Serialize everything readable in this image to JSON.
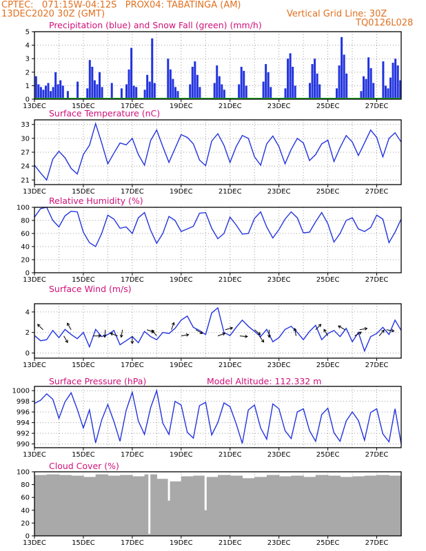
{
  "header": {
    "line1_left": "CPTEC:   071:15W-04:12S   PROX04: TABATINGA (AM)",
    "line2_left": "13DEC2020 30Z (GMT)",
    "line2_right": "Vertical Grid Line: 30Z",
    "model_code": "TQ0126L028"
  },
  "colors": {
    "series": "#2233dd",
    "snow": "#22aa22",
    "cloud": "#a9a9a9",
    "title": "#d0107a",
    "header": "#e07020"
  },
  "chart_data": [
    {
      "type": "bar",
      "title": "Precipitation (blue) and Snow Fall (green) (mm/h)",
      "ylim": [
        0,
        5
      ],
      "yticks": [
        0,
        1,
        2,
        3,
        4,
        5
      ],
      "xticks": [
        "13DEC",
        "15DEC",
        "17DEC",
        "19DEC",
        "21DEC",
        "23DEC",
        "25DEC",
        "27DEC"
      ],
      "x_day_range": [
        0,
        15
      ],
      "series": [
        {
          "name": "Precipitation",
          "color": "blue",
          "x": [
            0.05,
            0.15,
            0.25,
            0.35,
            0.45,
            0.55,
            0.65,
            0.75,
            0.85,
            0.95,
            1.05,
            1.15,
            1.35,
            1.75,
            2.15,
            2.25,
            2.35,
            2.45,
            2.55,
            2.65,
            2.75,
            3.15,
            3.55,
            3.75,
            3.85,
            3.95,
            4.05,
            4.15,
            4.5,
            4.6,
            4.7,
            4.8,
            4.9,
            5.45,
            5.55,
            5.65,
            5.75,
            5.85,
            6.35,
            6.45,
            6.55,
            6.65,
            6.75,
            7.35,
            7.45,
            7.55,
            7.65,
            7.75,
            8.35,
            8.45,
            8.55,
            8.65,
            9.35,
            9.45,
            9.55,
            9.65,
            10.25,
            10.35,
            10.45,
            10.55,
            10.65,
            11.25,
            11.35,
            11.45,
            11.55,
            11.65,
            12.35,
            12.45,
            12.55,
            12.65,
            12.75,
            13.35,
            13.45,
            13.55,
            13.65,
            13.75,
            13.85,
            14.25,
            14.35,
            14.45,
            14.55,
            14.65,
            14.75,
            14.85,
            14.95
          ],
          "values": [
            1.7,
            1.1,
            0.9,
            0.7,
            1.0,
            1.2,
            0.6,
            0.9,
            2.0,
            1.1,
            1.4,
            1.0,
            0.6,
            1.3,
            0.8,
            2.9,
            2.4,
            1.4,
            1.1,
            2.0,
            0.9,
            1.2,
            0.8,
            1.1,
            2.2,
            3.8,
            1.0,
            0.9,
            0.7,
            1.8,
            1.3,
            4.5,
            1.2,
            3.0,
            2.2,
            1.5,
            0.9,
            0.6,
            1.1,
            2.4,
            2.8,
            1.8,
            0.9,
            1.2,
            2.5,
            1.7,
            1.1,
            0.7,
            1.1,
            2.4,
            2.1,
            1.0,
            1.3,
            2.6,
            2.0,
            0.9,
            0.8,
            3.0,
            3.4,
            2.4,
            1.0,
            1.2,
            2.6,
            3.0,
            1.9,
            1.1,
            0.8,
            2.5,
            4.6,
            3.3,
            1.9,
            0.6,
            1.7,
            1.5,
            3.1,
            2.3,
            1.2,
            2.8,
            1.0,
            0.8,
            1.6,
            2.7,
            3.0,
            2.5,
            1.4
          ]
        },
        {
          "name": "Snow Fall",
          "color": "green",
          "values": [
            0
          ]
        }
      ]
    },
    {
      "type": "line",
      "title": "Surface Temperature (nC)",
      "ylim": [
        20,
        34
      ],
      "yticks": [
        21,
        24,
        27,
        30,
        33
      ],
      "xticks": [
        "13DEC",
        "15DEC",
        "17DEC",
        "19DEC",
        "21DEC",
        "23DEC",
        "25DEC",
        "27DEC"
      ],
      "x_day_range": [
        0,
        15
      ],
      "x": [
        0,
        0.25,
        0.5,
        0.75,
        1.0,
        1.25,
        1.5,
        1.75,
        2.0,
        2.25,
        2.5,
        2.75,
        3.0,
        3.25,
        3.5,
        3.75,
        4.0,
        4.25,
        4.5,
        4.75,
        5.0,
        5.25,
        5.5,
        5.75,
        6.0,
        6.25,
        6.5,
        6.75,
        7.0,
        7.25,
        7.5,
        7.75,
        8.0,
        8.25,
        8.5,
        8.75,
        9.0,
        9.25,
        9.5,
        9.75,
        10.0,
        10.25,
        10.5,
        10.75,
        11.0,
        11.25,
        11.5,
        11.75,
        12.0,
        12.25,
        12.5,
        12.75,
        13.0,
        13.25,
        13.5,
        13.75,
        14.0,
        14.25,
        14.5,
        14.75,
        15.0
      ],
      "values": [
        24.2,
        22.5,
        21.0,
        25.5,
        27.2,
        25.8,
        23.5,
        22.3,
        26.5,
        28.5,
        33.2,
        29.0,
        24.5,
        26.8,
        29.0,
        28.6,
        30.0,
        26.5,
        24.2,
        29.5,
        31.8,
        28.2,
        24.8,
        27.8,
        30.8,
        30.2,
        28.8,
        25.3,
        24.1,
        29.4,
        31.0,
        28.5,
        24.8,
        28.2,
        30.6,
        30.0,
        26.0,
        24.2,
        28.8,
        30.5,
        28.2,
        24.5,
        27.6,
        30.0,
        29.0,
        25.2,
        26.5,
        28.8,
        29.6,
        25.0,
        28.0,
        30.6,
        29.2,
        26.3,
        29.0,
        31.8,
        30.2,
        26.0,
        30.0,
        31.2,
        29.2
      ]
    },
    {
      "type": "line",
      "title": "Relative Humidity (%)",
      "ylim": [
        0,
        100
      ],
      "yticks": [
        0,
        20,
        40,
        60,
        80,
        100
      ],
      "xticks": [
        "13DEC",
        "15DEC",
        "17DEC",
        "19DEC",
        "21DEC",
        "23DEC",
        "25DEC",
        "27DEC"
      ],
      "x_day_range": [
        0,
        15
      ],
      "x": [
        0,
        0.25,
        0.5,
        0.75,
        1.0,
        1.25,
        1.5,
        1.75,
        2.0,
        2.25,
        2.5,
        2.75,
        3.0,
        3.25,
        3.5,
        3.75,
        4.0,
        4.25,
        4.5,
        4.75,
        5.0,
        5.25,
        5.5,
        5.75,
        6.0,
        6.25,
        6.5,
        6.75,
        7.0,
        7.25,
        7.5,
        7.75,
        8.0,
        8.25,
        8.5,
        8.75,
        9.0,
        9.25,
        9.5,
        9.75,
        10.0,
        10.25,
        10.5,
        10.75,
        11.0,
        11.25,
        11.5,
        11.75,
        12.0,
        12.25,
        12.5,
        12.75,
        13.0,
        13.25,
        13.5,
        13.75,
        14.0,
        14.25,
        14.5,
        14.75,
        15.0
      ],
      "values": [
        85,
        98,
        100,
        80,
        70,
        87,
        94,
        93,
        62,
        46,
        40,
        60,
        88,
        82,
        68,
        70,
        60,
        84,
        92,
        65,
        45,
        60,
        86,
        80,
        63,
        67,
        71,
        91,
        92,
        68,
        52,
        60,
        85,
        73,
        59,
        60,
        83,
        93,
        70,
        53,
        66,
        82,
        93,
        84,
        61,
        62,
        78,
        92,
        75,
        47,
        60,
        80,
        84,
        67,
        63,
        69,
        88,
        82,
        46,
        62,
        82
      ]
    },
    {
      "type": "line",
      "title": "Surface Wind (m/s)",
      "ylim": [
        -0.5,
        4.8
      ],
      "yticks": [
        0,
        2,
        4
      ],
      "xticks": [
        "13DEC",
        "15DEC",
        "17DEC",
        "19DEC",
        "21DEC",
        "23DEC",
        "25DEC",
        "27DEC"
      ],
      "x_day_range": [
        0,
        15
      ],
      "x": [
        0,
        0.25,
        0.5,
        0.75,
        1.0,
        1.25,
        1.5,
        1.75,
        2.0,
        2.25,
        2.5,
        2.75,
        3.0,
        3.25,
        3.5,
        3.75,
        4.0,
        4.25,
        4.5,
        4.75,
        5.0,
        5.25,
        5.5,
        5.75,
        6.0,
        6.25,
        6.5,
        6.75,
        7.0,
        7.25,
        7.5,
        7.75,
        8.0,
        8.25,
        8.5,
        8.75,
        9.0,
        9.25,
        9.5,
        9.75,
        10.0,
        10.25,
        10.5,
        10.75,
        11.0,
        11.25,
        11.5,
        11.75,
        12.0,
        12.25,
        12.5,
        12.75,
        13.0,
        13.25,
        13.5,
        13.75,
        14.0,
        14.25,
        14.5,
        14.75,
        15.0
      ],
      "values": [
        1.7,
        1.2,
        1.3,
        2.2,
        1.5,
        2.3,
        1.8,
        1.4,
        2.0,
        0.6,
        2.3,
        1.6,
        1.8,
        2.2,
        0.8,
        1.2,
        1.6,
        1.0,
        2.1,
        1.6,
        1.3,
        2.0,
        1.9,
        2.4,
        3.2,
        3.6,
        2.5,
        2.2,
        1.8,
        3.9,
        4.4,
        2.0,
        1.7,
        2.5,
        3.2,
        2.6,
        2.1,
        1.6,
        2.3,
        1.1,
        1.5,
        2.3,
        2.6,
        2.0,
        1.3,
        2.1,
        2.7,
        1.3,
        1.9,
        2.2,
        1.6,
        2.4,
        1.1,
        2.0,
        0.2,
        1.6,
        1.9,
        2.5,
        1.8,
        3.2,
        2.2
      ]
    },
    {
      "type": "line",
      "title": "Surface Pressure (hPa)",
      "annotation": "Model Altitude: 112.332 m",
      "ylim": [
        989.3,
        1000.8
      ],
      "yticks": [
        990,
        992,
        994,
        996,
        998,
        1000
      ],
      "xticks": [
        "13DEC",
        "15DEC",
        "17DEC",
        "19DEC",
        "21DEC",
        "23DEC",
        "25DEC",
        "27DEC"
      ],
      "x_day_range": [
        0,
        15
      ],
      "x": [
        0,
        0.25,
        0.5,
        0.75,
        1.0,
        1.25,
        1.5,
        1.75,
        2.0,
        2.25,
        2.5,
        2.75,
        3.0,
        3.25,
        3.5,
        3.75,
        4.0,
        4.25,
        4.5,
        4.75,
        5.0,
        5.25,
        5.5,
        5.75,
        6.0,
        6.25,
        6.5,
        6.75,
        7.0,
        7.25,
        7.5,
        7.75,
        8.0,
        8.25,
        8.5,
        8.75,
        9.0,
        9.25,
        9.5,
        9.75,
        10.0,
        10.25,
        10.5,
        10.75,
        11.0,
        11.25,
        11.5,
        11.75,
        12.0,
        12.25,
        12.5,
        12.75,
        13.0,
        13.25,
        13.5,
        13.75,
        14.0,
        14.25,
        14.5,
        14.75,
        15.0
      ],
      "values": [
        997.6,
        998.2,
        999.4,
        998.4,
        994.8,
        997.9,
        999.6,
        996.5,
        993.0,
        996.4,
        990.2,
        994.5,
        997.4,
        994.2,
        990.5,
        996.3,
        999.7,
        994.3,
        991.8,
        996.8,
        1000.0,
        993.9,
        991.8,
        998.0,
        997.3,
        992.2,
        991.1,
        997.2,
        997.8,
        991.7,
        994.0,
        997.7,
        997.0,
        993.8,
        990.1,
        996.4,
        997.3,
        993.0,
        990.9,
        997.5,
        996.6,
        992.5,
        991.0,
        996.0,
        996.6,
        992.5,
        990.5,
        995.5,
        996.7,
        992.1,
        990.5,
        994.3,
        996.0,
        994.4,
        990.7,
        995.9,
        996.6,
        991.9,
        990.4,
        996.6,
        990.0
      ]
    },
    {
      "type": "bar",
      "title": "Cloud Cover (%)",
      "ylim": [
        0,
        100
      ],
      "yticks": [
        0,
        20,
        40,
        60,
        80,
        100
      ],
      "xticks": [
        "13DEC",
        "15DEC",
        "17DEC",
        "19DEC",
        "21DEC",
        "23DEC",
        "25DEC",
        "27DEC"
      ],
      "x_day_range": [
        0,
        15
      ],
      "x": [
        0,
        0.5,
        1.0,
        1.5,
        2.0,
        2.5,
        3.0,
        3.5,
        4.0,
        4.5,
        5.0,
        5.5,
        6.0,
        6.5,
        7.0,
        7.5,
        8.0,
        8.5,
        9.0,
        9.5,
        10.0,
        10.5,
        11.0,
        11.5,
        12.0,
        12.5,
        13.0,
        13.5,
        14.0,
        14.5
      ],
      "values": [
        95,
        96,
        95,
        94,
        92,
        96,
        94,
        95,
        93,
        96,
        89,
        85,
        93,
        94,
        92,
        95,
        94,
        90,
        92,
        95,
        93,
        94,
        92,
        95,
        94,
        92,
        93,
        94,
        95,
        94
      ],
      "dips_x": [
        4.7,
        5.5,
        7.0
      ],
      "dips_values": [
        3,
        55,
        40
      ]
    }
  ]
}
